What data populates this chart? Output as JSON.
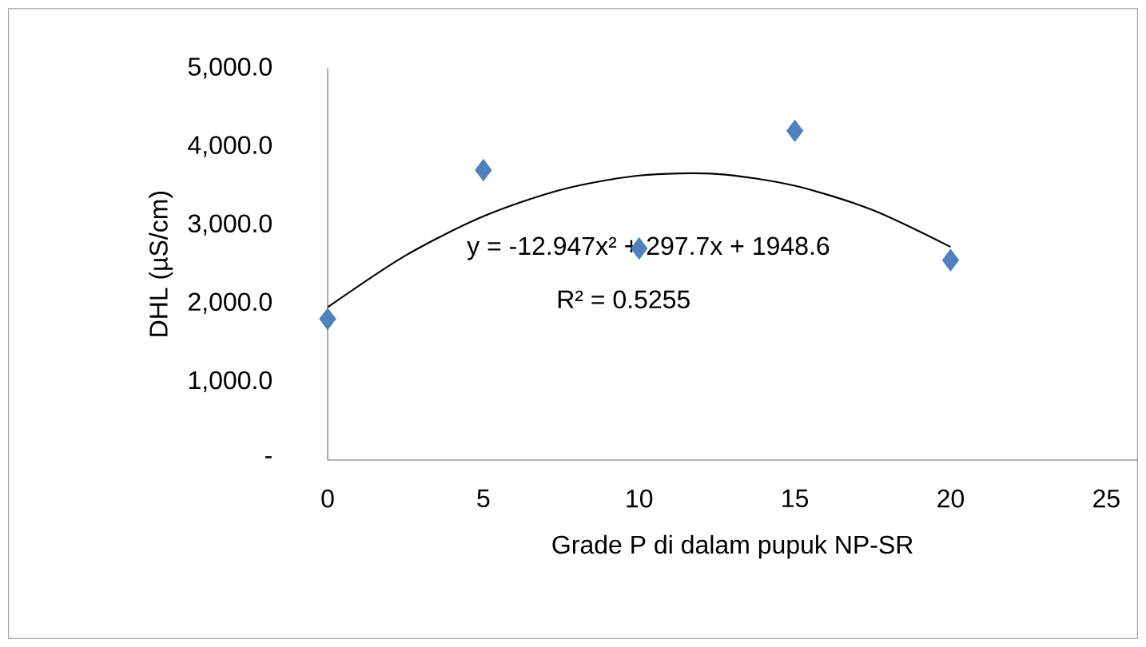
{
  "chart_data": {
    "type": "scatter",
    "xlabel": "Grade P di dalam pupuk NP-SR",
    "ylabel": "DHL (µS/cm)",
    "x": [
      0,
      5,
      10,
      15,
      20
    ],
    "series": [
      {
        "color": "#4f81bd",
        "marker": "diamond",
        "values": [
          1800,
          3700,
          2700,
          4200,
          2550
        ]
      },
      {
        "type": "line",
        "color": "#000000",
        "marker": "none",
        "line_style": "solid",
        "x": [
          0,
          2.5,
          5,
          7.5,
          10,
          12.5,
          15,
          17.5,
          20
        ],
        "values": [
          1950,
          2610,
          3110,
          3450,
          3630,
          3650,
          3500,
          3190,
          2720
        ]
      }
    ],
    "xlim": [
      0,
      26
    ],
    "xticks": [
      0,
      5,
      10,
      15,
      20,
      25
    ],
    "ylim": [
      0,
      5000
    ],
    "yticks": [
      {
        "value": 0,
        "label": "-"
      },
      {
        "value": 1000,
        "label": "1,000.0"
      },
      {
        "value": 2000,
        "label": "2,000.0"
      },
      {
        "value": 3000,
        "label": "3,000.0"
      },
      {
        "value": 4000,
        "label": "4,000.0"
      },
      {
        "value": 5000,
        "label": "5,000.0"
      }
    ],
    "grid": false,
    "annotations": [
      "y = -12.947x² + 297.7x + 1948.6",
      "R² = 0.5255"
    ]
  }
}
